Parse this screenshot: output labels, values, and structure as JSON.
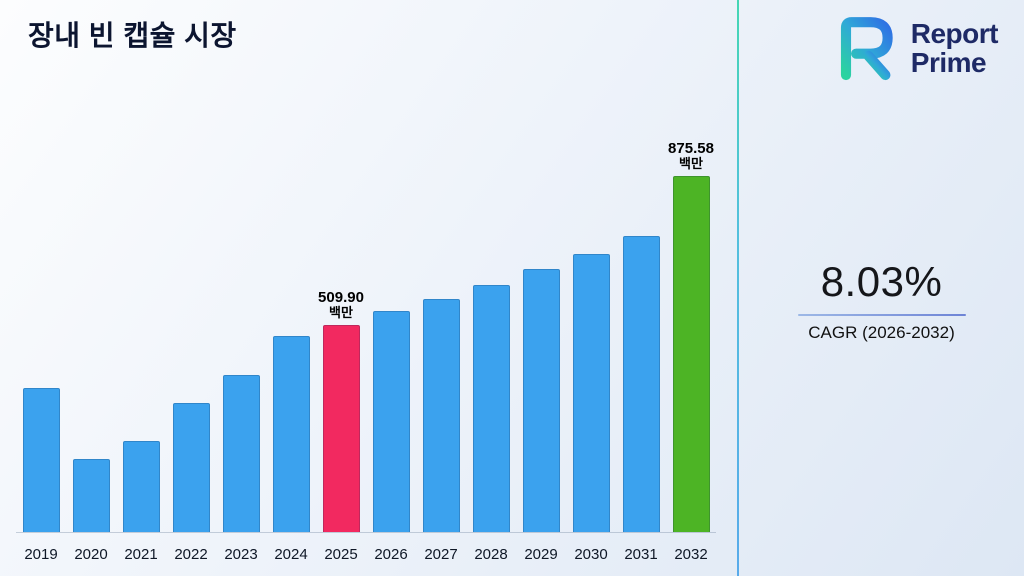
{
  "header": {
    "title": "장내 빈 캡슐 시장",
    "logo": {
      "name": "Report Prime",
      "line1": "Report",
      "line2": "Prime"
    }
  },
  "stats": {
    "cagr_value": "8.03%",
    "cagr_label": "CAGR (2026-2032)"
  },
  "chart_data": {
    "type": "bar",
    "title": "장내 빈 캡슐 시장",
    "value_unit": "백만",
    "ylim": [
      0,
      900
    ],
    "grid": false,
    "legend": false,
    "colors": {
      "blue": "#3ba2ee",
      "pink": "#f22960",
      "green": "#4db425"
    },
    "bars": [
      {
        "year": "2019",
        "value": 355,
        "color": "blue"
      },
      {
        "year": "2020",
        "value": 180,
        "color": "blue"
      },
      {
        "year": "2021",
        "value": 225,
        "color": "blue"
      },
      {
        "year": "2022",
        "value": 318,
        "color": "blue"
      },
      {
        "year": "2023",
        "value": 385,
        "color": "blue"
      },
      {
        "year": "2024",
        "value": 483,
        "color": "blue"
      },
      {
        "year": "2025",
        "value": 509.9,
        "color": "pink",
        "label_value": "509.90",
        "label_unit": "백만"
      },
      {
        "year": "2026",
        "value": 543,
        "color": "blue"
      },
      {
        "year": "2027",
        "value": 572,
        "color": "blue"
      },
      {
        "year": "2028",
        "value": 608,
        "color": "blue"
      },
      {
        "year": "2029",
        "value": 648,
        "color": "blue"
      },
      {
        "year": "2030",
        "value": 683,
        "color": "blue"
      },
      {
        "year": "2031",
        "value": 729,
        "color": "blue"
      },
      {
        "year": "2032",
        "value": 875.58,
        "color": "green",
        "label_value": "875.58",
        "label_unit": "백만"
      }
    ],
    "annotations": [
      "509.90 백만 (2025 highlighted bar)",
      "875.58 백만 (2032 highlighted bar)"
    ]
  }
}
